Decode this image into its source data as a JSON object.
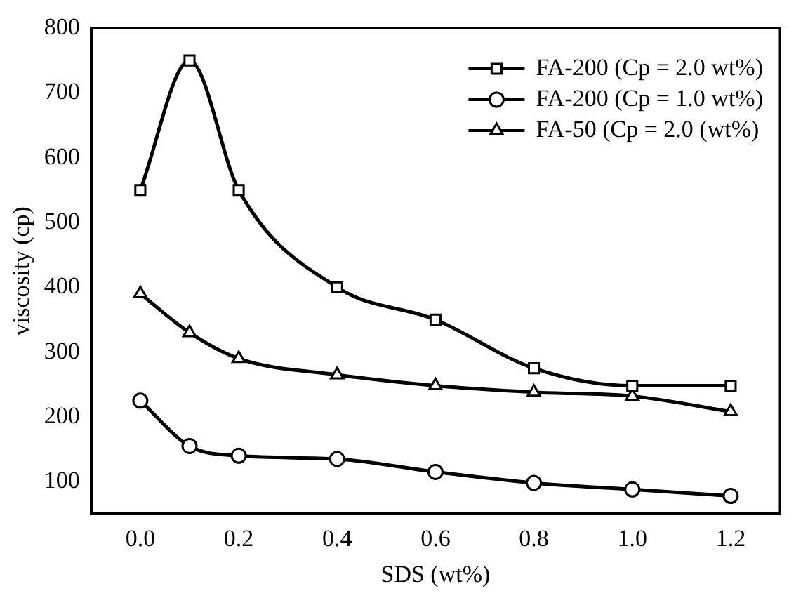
{
  "chart_data": {
    "type": "line",
    "xlabel": "SDS (wt%)",
    "ylabel": "viscosity (cp)",
    "x": [
      0,
      0.1,
      0.2,
      0.4,
      0.6,
      0.8,
      1.0,
      1.2
    ],
    "series": [
      {
        "name": "FA-200 (Cp = 2.0 wt%)",
        "color": "#000000",
        "marker": "square",
        "values": [
          550,
          750,
          550,
          400,
          350,
          275,
          248,
          248
        ]
      },
      {
        "name": "FA-200 (Cp = 1.0 wt%)",
        "color": "#000000",
        "marker": "circle",
        "values": [
          225,
          155,
          140,
          135,
          115,
          98,
          88,
          78
        ]
      },
      {
        "name": "FA-50 (Cp = 2.0 (wt%)",
        "color": "#000000",
        "marker": "triangle",
        "values": [
          390,
          330,
          290,
          265,
          248,
          238,
          232,
          208
        ]
      }
    ],
    "xlim": [
      -0.1,
      1.3
    ],
    "xticks": [
      {
        "value": 0,
        "label": "0.0"
      },
      0.2,
      0.4,
      0.6,
      0.8,
      {
        "value": 1,
        "label": "1.0"
      },
      1.2
    ],
    "ylim": [
      50,
      800
    ],
    "yticks": [
      100,
      200,
      300,
      400,
      500,
      600,
      700,
      800
    ],
    "grid": false,
    "legend": "top right",
    "line_style": "solid"
  }
}
